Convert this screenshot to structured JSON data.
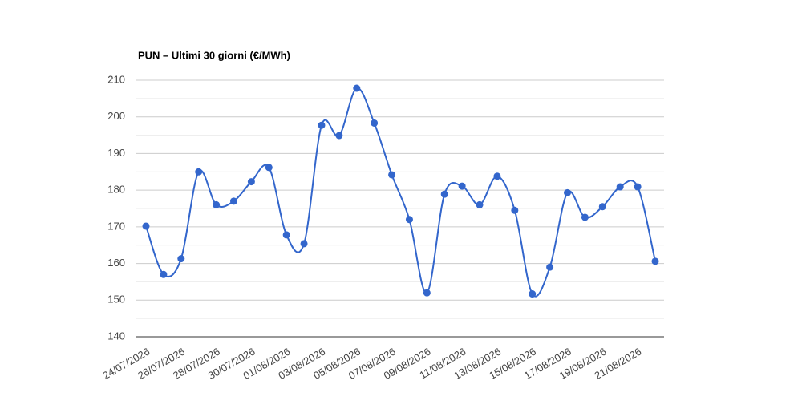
{
  "chart_data": {
    "type": "line",
    "title": "PUN – Ultimi 30 giorni (€/MWh)",
    "categories": [
      "24/07/2026",
      null,
      "26/07/2026",
      null,
      "28/07/2026",
      null,
      "30/07/2026",
      null,
      "01/08/2026",
      null,
      "03/08/2026",
      null,
      "05/08/2026",
      null,
      "07/08/2026",
      null,
      "09/08/2026",
      null,
      "11/08/2026",
      null,
      "13/08/2026",
      null,
      "15/08/2026",
      null,
      "17/08/2026",
      null,
      "19/08/2026",
      null,
      "21/08/2026",
      null
    ],
    "series": [
      {
        "name": "PUN",
        "color": "#3366cc",
        "values": [
          170.2,
          157,
          161.3,
          185,
          176,
          177,
          182.3,
          186.2,
          167.8,
          165.4,
          197.7,
          194.9,
          207.8,
          198.3,
          184.2,
          172,
          152,
          178.9,
          181.1,
          176,
          183.8,
          174.5,
          151.7,
          159,
          179.3,
          172.6,
          175.5,
          180.9,
          180.9,
          160.6
        ]
      }
    ],
    "ylim": [
      140,
      210
    ],
    "yticks": [
      140,
      150,
      160,
      170,
      180,
      190,
      200,
      210
    ],
    "grid": true,
    "smooth": true
  }
}
